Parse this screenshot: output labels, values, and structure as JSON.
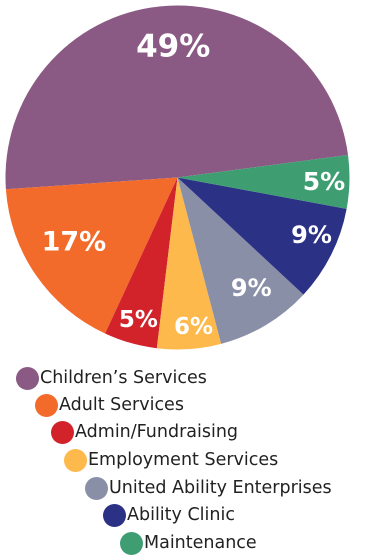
{
  "chart_data": {
    "type": "pie",
    "categories": [
      "Children’s Services",
      "Adult Services",
      "Admin/Fundraising",
      "Employment Services",
      "United Ability Enterprises",
      "Ability Clinic",
      "Maintenance"
    ],
    "values": [
      49,
      17,
      5,
      6,
      9,
      9,
      5
    ],
    "value_labels": [
      "49%",
      "17%",
      "5%",
      "6%",
      "9%",
      "9%",
      "5%"
    ],
    "colors": [
      "#8B5A84",
      "#F26B2A",
      "#D2232A",
      "#FDB94C",
      "#8A8FA8",
      "#2B3185",
      "#3E9E72"
    ],
    "legend_placement": "bottom"
  }
}
